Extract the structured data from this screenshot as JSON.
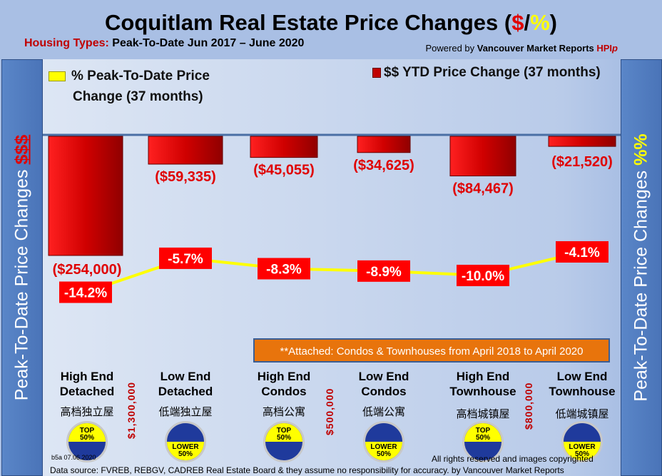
{
  "header": {
    "title_main": "Coquitlam Real Estate Price Changes (",
    "title_dollar": "$",
    "title_slash": "/",
    "title_pct": "%",
    "title_close": ")",
    "subtitle_label": "Housing Types:",
    "subtitle_text": " Peak-To-Date Jun 2017 – June 2020",
    "powered_prefix": "Powered by ",
    "powered_brand": "Vancouver Market Reports ",
    "powered_hpi": "HPI",
    "powered_p": "p"
  },
  "side": {
    "left": "Peak-To-Date Price Changes",
    "left_sym": "$$$",
    "right": "Peak-To-Date  Price  Changes",
    "right_sym": "%%"
  },
  "chart_data": {
    "type": "bar+line",
    "title": "Coquitlam Real Estate Price Changes ($/%)",
    "categories": [
      "High End Detached",
      "Low End Detached",
      "High End Condos",
      "Low End Condos",
      "High End Townhouse",
      "Low End Townhouse"
    ],
    "series": [
      {
        "name": "$$ YTD Price Change (37 months)",
        "type": "bar",
        "values": [
          -254000,
          -59335,
          -45055,
          -34625,
          -84467,
          -21520
        ],
        "labels": [
          "($254,000)",
          "($59,335)",
          "($45,055)",
          "($34,625)",
          "($84,467)",
          "($21,520)"
        ],
        "color": "#e00000"
      },
      {
        "name": "% Peak-To-Date Price Change (37 months)",
        "type": "line",
        "values": [
          -14.2,
          -5.7,
          -8.3,
          -8.9,
          -10.0,
          -4.1
        ],
        "labels": [
          "-14.2%",
          "-5.7%",
          "-8.3%",
          "-8.9%",
          "-10.0%",
          "-4.1%"
        ],
        "color": "#ffff00"
      }
    ],
    "legend": {
      "line_l1": "% Peak-To-Date Price",
      "line_l2": "Change (37 months)",
      "bar": "$$ YTD Price Change (37 months)"
    }
  },
  "note": "**Attached: Condos & Townhouses from April 2018 to April 2020",
  "categories": [
    {
      "l1": "High End",
      "l2": "Detached",
      "cn": "高档独立屋",
      "badge": "top"
    },
    {
      "l1": "Low End",
      "l2": "Detached",
      "cn": "低端独立屋",
      "badge": "lower"
    },
    {
      "l1": "High End",
      "l2": "Condos",
      "cn": "高档公寓",
      "badge": "top"
    },
    {
      "l1": "Low End",
      "l2": "Condos",
      "cn": "低端公寓",
      "badge": "lower"
    },
    {
      "l1": "High End",
      "l2": "Townhouse",
      "cn": "高档城镇屋",
      "badge": "top"
    },
    {
      "l1": "Low End",
      "l2": "Townhouse",
      "cn": "低端城镇屋",
      "badge": "lower"
    }
  ],
  "badges": {
    "top": "TOP",
    "lower": "LOWER",
    "pct": "50%"
  },
  "thresholds": [
    "$1,300,000",
    "$500,000",
    "$800,000"
  ],
  "footer": {
    "code": "b5a 07.06.2020",
    "rights": "All rights reserved and  images copyrighted",
    "source": "Data source: FVREB, REBGV, CADREB Real Estate Board & they assume no responsibility for accuracy. by Vancouver Market Reports"
  }
}
